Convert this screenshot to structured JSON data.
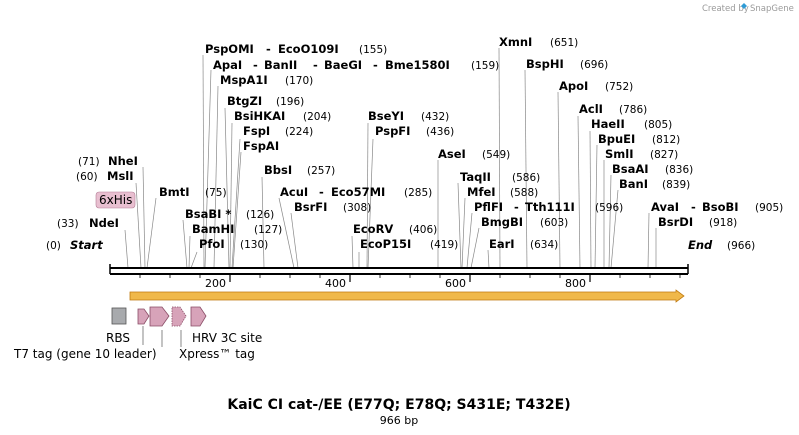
{
  "credit": {
    "prefix": "Created by",
    "brand": "SnapGene"
  },
  "title": "KaiC CI cat-/EE (E77Q; E78Q; S431E; T432E)",
  "length_label": "966 bp",
  "start_label": "Start",
  "start_pos": "(0)",
  "end_label": "End",
  "end_pos": "(966)",
  "ruler": {
    "ticks": [
      "200",
      "400",
      "600",
      "800"
    ]
  },
  "his_tag": "6xHis",
  "sites": [
    {
      "name": "PspOMI",
      "pos": ""
    },
    {
      "name": "EcoO109I",
      "pos": "(155)"
    },
    {
      "name": "ApaI",
      "pos": ""
    },
    {
      "name": "BanII",
      "pos": ""
    },
    {
      "name": "BaeGI",
      "pos": ""
    },
    {
      "name": "Bme1580I",
      "pos": "(159)"
    },
    {
      "name": "MspA1I",
      "pos": "(170)"
    },
    {
      "name": "BtgZI",
      "pos": "(196)"
    },
    {
      "name": "BsiHKAI",
      "pos": "(204)"
    },
    {
      "name": "FspI",
      "pos": "(224)"
    },
    {
      "name": "FspAI",
      "pos": ""
    },
    {
      "name": "BbsI",
      "pos": "(257)"
    },
    {
      "name": "NheI",
      "pos": "(71)"
    },
    {
      "name": "MslI",
      "pos": "(60)"
    },
    {
      "name": "BmtI",
      "pos": "(75)"
    },
    {
      "name": "BsaBI *",
      "pos": "(126)"
    },
    {
      "name": "BamHI",
      "pos": "(127)"
    },
    {
      "name": "PfoI",
      "pos": "(130)"
    },
    {
      "name": "NdeI",
      "pos": "(33)"
    },
    {
      "name": "AcuI",
      "pos": ""
    },
    {
      "name": "Eco57MI",
      "pos": "(285)"
    },
    {
      "name": "BsrFI",
      "pos": "(308)"
    },
    {
      "name": "BseYI",
      "pos": "(432)"
    },
    {
      "name": "PspFI",
      "pos": "(436)"
    },
    {
      "name": "EcoRV",
      "pos": "(406)"
    },
    {
      "name": "EcoP15I",
      "pos": "(419)"
    },
    {
      "name": "XmnI",
      "pos": "(651)"
    },
    {
      "name": "BspHI",
      "pos": "(696)"
    },
    {
      "name": "ApoI",
      "pos": "(752)"
    },
    {
      "name": "AclI",
      "pos": "(786)"
    },
    {
      "name": "HaeII",
      "pos": "(805)"
    },
    {
      "name": "BpuEI",
      "pos": "(812)"
    },
    {
      "name": "SmlI",
      "pos": "(827)"
    },
    {
      "name": "BsaAI",
      "pos": "(836)"
    },
    {
      "name": "BanI",
      "pos": "(839)"
    },
    {
      "name": "AseI",
      "pos": "(549)"
    },
    {
      "name": "TaqII",
      "pos": "(586)"
    },
    {
      "name": "MfeI",
      "pos": "(588)"
    },
    {
      "name": "PflFI",
      "pos": ""
    },
    {
      "name": "Tth111I",
      "pos": "(596)"
    },
    {
      "name": "BmgBI",
      "pos": "(603)"
    },
    {
      "name": "EarI",
      "pos": "(634)"
    },
    {
      "name": "AvaI",
      "pos": ""
    },
    {
      "name": "BsoBI",
      "pos": "(905)"
    },
    {
      "name": "BsrDI",
      "pos": "(918)"
    }
  ],
  "features": {
    "rbs": "RBS",
    "t7_tag": "T7 tag (gene 10 leader)",
    "hrv": "HRV 3C site",
    "xpress": "Xpress™ tag"
  },
  "colors": {
    "orf": "#f0b84a",
    "orf_edge": "#c07a10",
    "feature": "#d7a3b9",
    "feature_edge": "#8a4d66",
    "rbs": "#a8aaad",
    "his": "#e8bfd0"
  }
}
